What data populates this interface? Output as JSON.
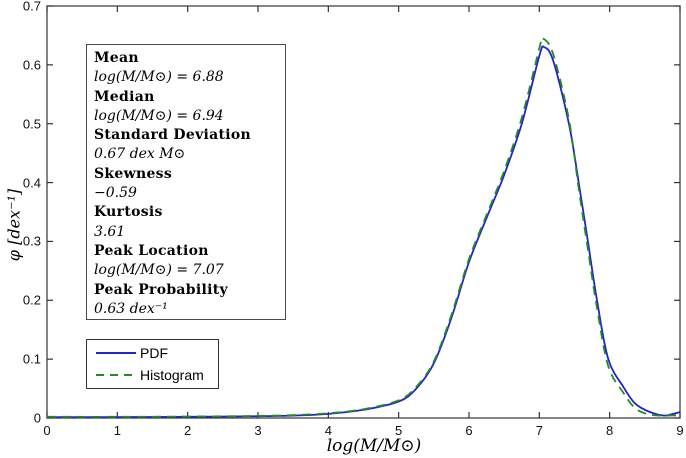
{
  "figure": {
    "background": "#ffffff",
    "axis_color": "#333333"
  },
  "chart_data": {
    "type": "line",
    "title": "",
    "xlabel": "log(M/M⊙)",
    "ylabel": "φ [dex⁻¹]",
    "xlim": [
      0,
      9
    ],
    "ylim": [
      0,
      0.7
    ],
    "xticks": [
      0,
      1,
      2,
      3,
      4,
      5,
      6,
      7,
      8,
      9
    ],
    "yticks": [
      0,
      0.1,
      0.2,
      0.3,
      0.4,
      0.5,
      0.6,
      0.7
    ],
    "grid": false,
    "legend_position": "lower-left",
    "series": [
      {
        "name": "PDF",
        "color": "#2323cc",
        "line_style": "solid",
        "points": [
          [
            0,
            0.0015
          ],
          [
            1,
            0.0015
          ],
          [
            2,
            0.002
          ],
          [
            3,
            0.003
          ],
          [
            3.5,
            0.004
          ],
          [
            4,
            0.007
          ],
          [
            4.5,
            0.014
          ],
          [
            5,
            0.028
          ],
          [
            5.25,
            0.05
          ],
          [
            5.5,
            0.093
          ],
          [
            5.75,
            0.17
          ],
          [
            6,
            0.265
          ],
          [
            6.25,
            0.34
          ],
          [
            6.5,
            0.413
          ],
          [
            6.75,
            0.5
          ],
          [
            7,
            0.615
          ],
          [
            7.07,
            0.63
          ],
          [
            7.2,
            0.606
          ],
          [
            7.42,
            0.5
          ],
          [
            7.56,
            0.4
          ],
          [
            7.69,
            0.3
          ],
          [
            7.82,
            0.2
          ],
          [
            7.98,
            0.1
          ],
          [
            8.2,
            0.052
          ],
          [
            8.35,
            0.026
          ],
          [
            8.5,
            0.014
          ],
          [
            8.65,
            0.007
          ],
          [
            8.78,
            0.004
          ],
          [
            8.9,
            0.007
          ],
          [
            9,
            0.01
          ]
        ]
      },
      {
        "name": "Histogram",
        "color": "#228b22",
        "line_style": "dashed",
        "points": [
          [
            0,
            0.002
          ],
          [
            1,
            0.002
          ],
          [
            2,
            0.0025
          ],
          [
            3,
            0.0035
          ],
          [
            3.5,
            0.005
          ],
          [
            4,
            0.008
          ],
          [
            4.5,
            0.015
          ],
          [
            5,
            0.03
          ],
          [
            5.25,
            0.053
          ],
          [
            5.5,
            0.096
          ],
          [
            5.75,
            0.175
          ],
          [
            6,
            0.27
          ],
          [
            6.25,
            0.345
          ],
          [
            6.5,
            0.42
          ],
          [
            6.75,
            0.51
          ],
          [
            7,
            0.628
          ],
          [
            7.05,
            0.645
          ],
          [
            7.2,
            0.617
          ],
          [
            7.42,
            0.507
          ],
          [
            7.56,
            0.39
          ],
          [
            7.69,
            0.287
          ],
          [
            7.82,
            0.187
          ],
          [
            7.98,
            0.088
          ],
          [
            8.2,
            0.042
          ],
          [
            8.35,
            0.018
          ],
          [
            8.5,
            0.008
          ],
          [
            8.65,
            0.0045
          ],
          [
            8.8,
            0.004
          ],
          [
            9,
            0.0045
          ]
        ]
      }
    ]
  },
  "stats_box": {
    "items": [
      {
        "label": "Mean",
        "value": "log(M/M⊙) = 6.88"
      },
      {
        "label": "Median",
        "value": "log(M/M⊙) = 6.94"
      },
      {
        "label": "Standard Deviation",
        "value": "0.67 dex M⊙"
      },
      {
        "label": "Skewness",
        "value": "−0.59"
      },
      {
        "label": "Kurtosis",
        "value": "3.61"
      },
      {
        "label": "Peak Location",
        "value": "log(M/M⊙) = 7.07"
      },
      {
        "label": "Peak Probability",
        "value": "0.63 dex⁻¹"
      }
    ]
  }
}
